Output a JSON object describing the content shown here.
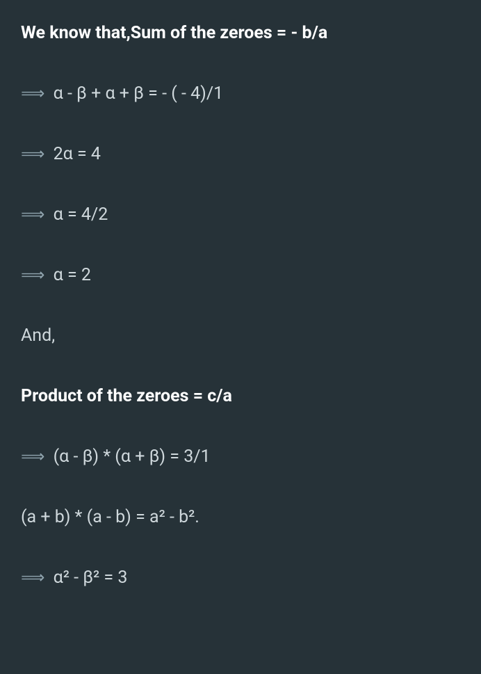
{
  "lines": [
    {
      "text": "We know that,Sum of the zeroes = - b/a",
      "bold": true,
      "arrow": false
    },
    {
      "text": "α - β + α + β = - ( - 4)/1",
      "bold": false,
      "arrow": true
    },
    {
      "text": "2α = 4",
      "bold": false,
      "arrow": true
    },
    {
      "text": "α = 4/2",
      "bold": false,
      "arrow": true
    },
    {
      "text": "α = 2",
      "bold": false,
      "arrow": true
    },
    {
      "text": "And,",
      "bold": false,
      "arrow": false
    },
    {
      "text": "Product of the zeroes = c/a",
      "bold": true,
      "arrow": false
    },
    {
      "text": "(α - β) * (α + β) = 3/1",
      "bold": false,
      "arrow": true
    },
    {
      "text": "(a + b) * (a - b) = a² - b².",
      "bold": false,
      "arrow": false
    },
    {
      "text": "α² - β² = 3",
      "bold": false,
      "arrow": true
    }
  ],
  "arrowGlyph": "⟹",
  "style": {
    "background": "#263238",
    "textColor": "#e8eaed",
    "boldColor": "#ffffff",
    "regularColor": "#cfd8dc",
    "arrowColor": "#90a4ae",
    "fontSize": 25
  }
}
